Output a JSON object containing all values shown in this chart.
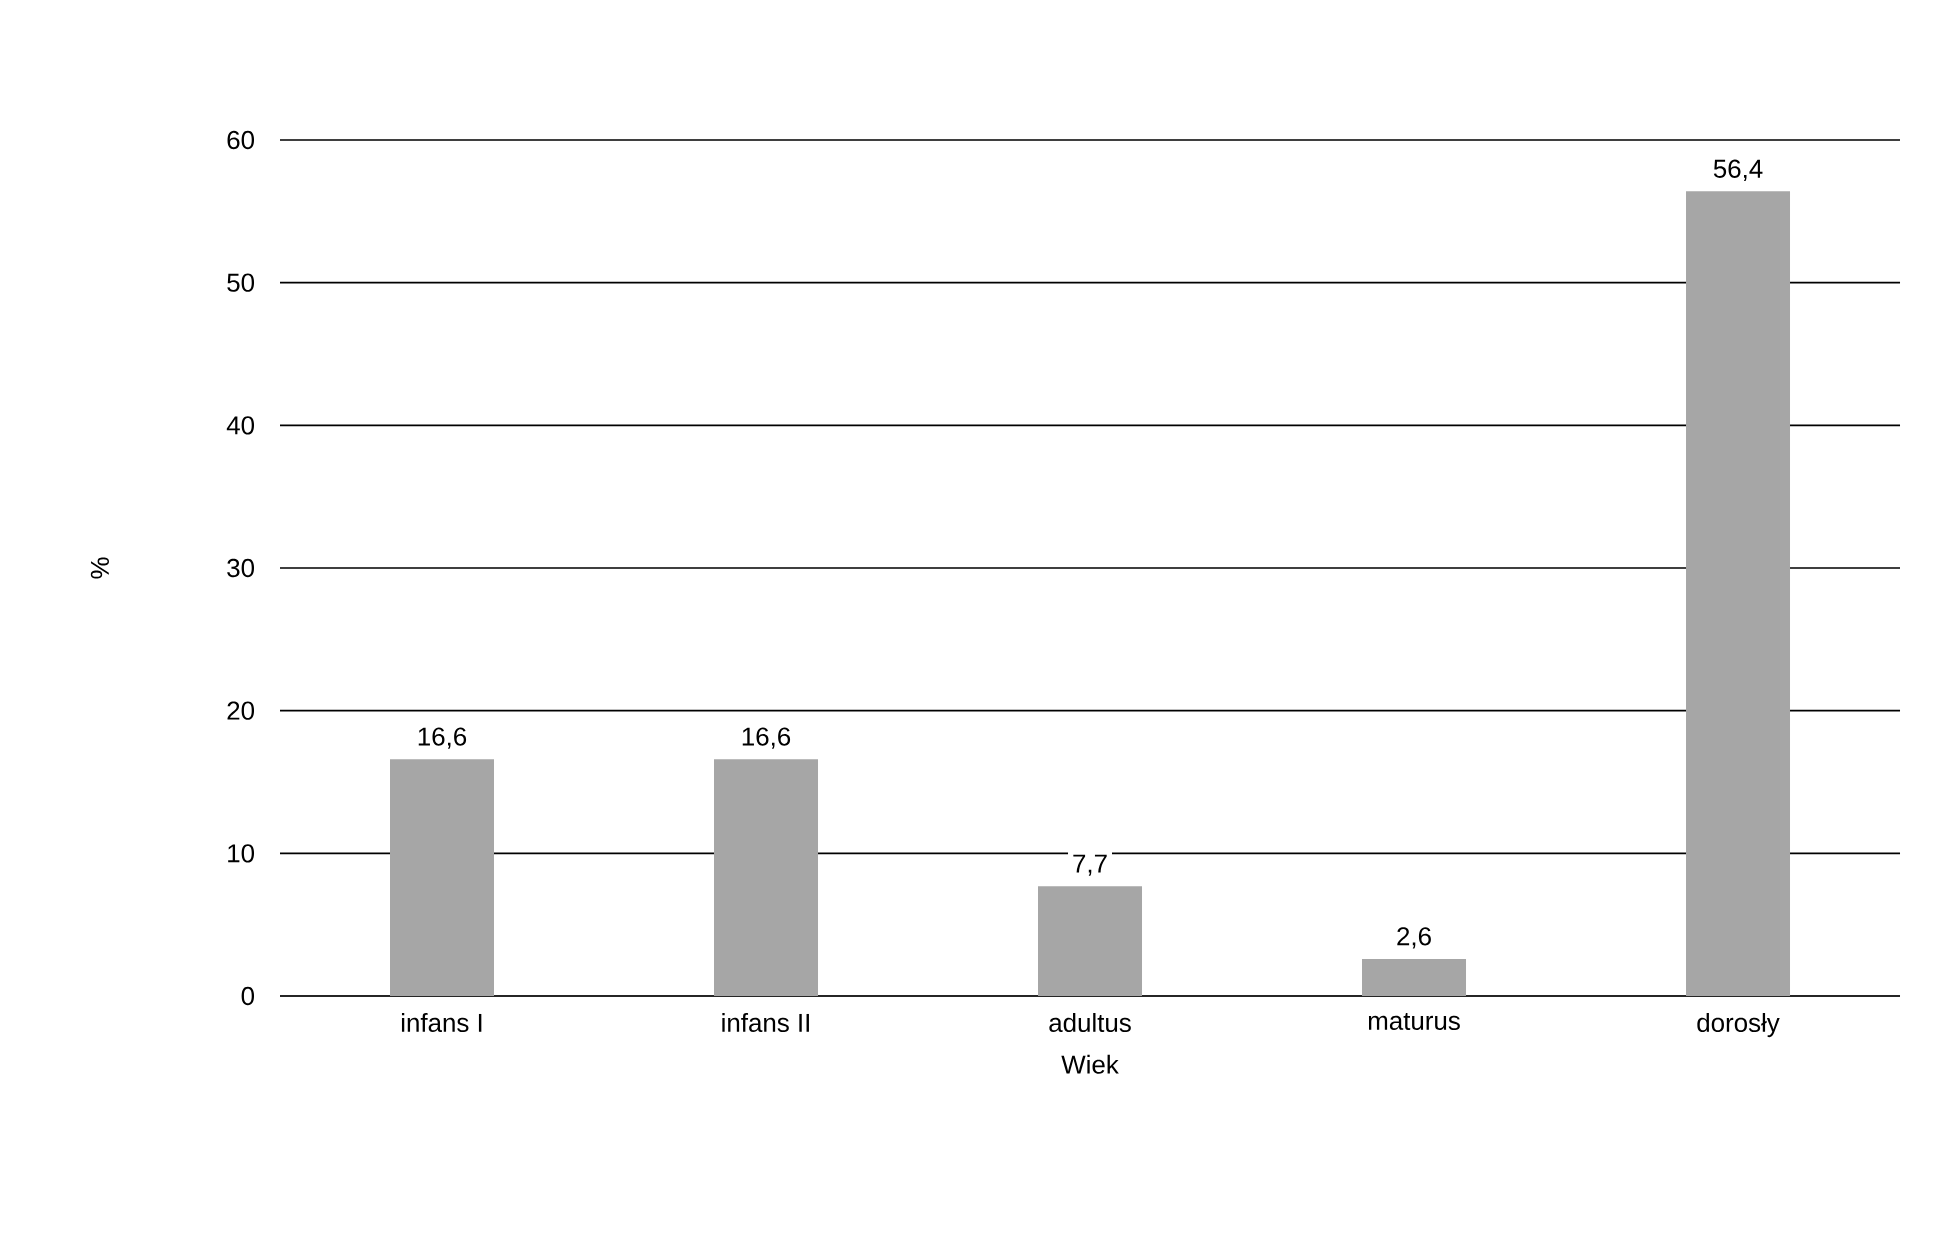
{
  "chart_data": {
    "type": "bar",
    "xlabel": "Wiek",
    "ylabel": "%",
    "categories": [
      "infans I",
      "infans II",
      "adultus",
      "maturus",
      "dorosły"
    ],
    "values": [
      16.6,
      16.6,
      7.7,
      2.6,
      56.4
    ],
    "value_labels": [
      "16,6",
      "16,6",
      "7,7",
      "2,6",
      "56,4"
    ],
    "color": "#a6a6a6",
    "ylim": [
      0,
      60
    ],
    "yticks": [
      0,
      10,
      20,
      30,
      40,
      50,
      60
    ],
    "grid": "y"
  }
}
